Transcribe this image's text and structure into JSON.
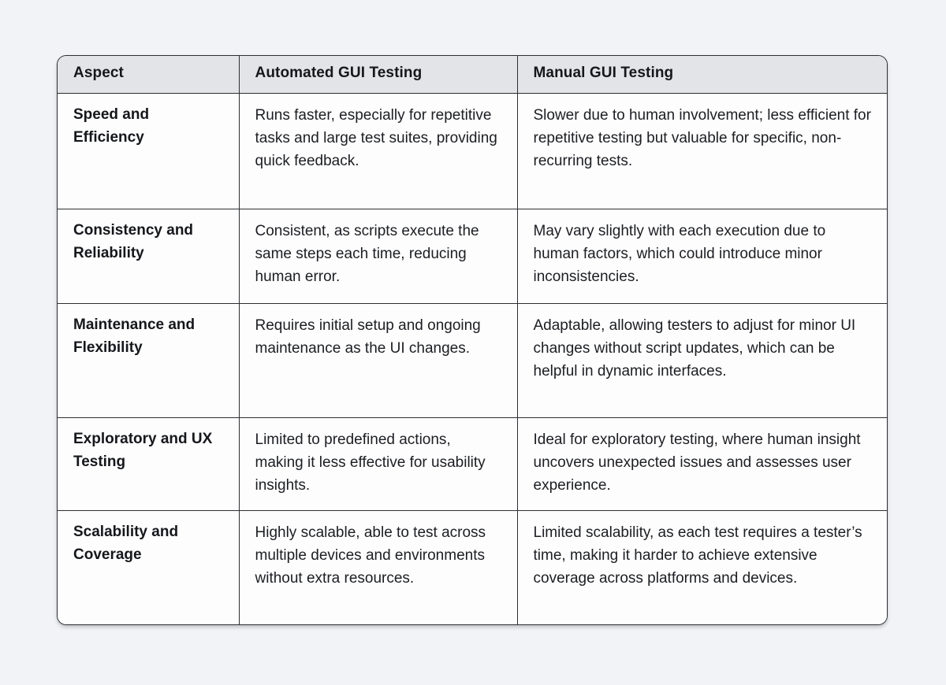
{
  "colors": {
    "page_background": "#f1f3f6",
    "header_background": "#e3e4e8",
    "cell_background": "#fdfdfd",
    "border": "#2c2e33",
    "text": "#1c1e22"
  },
  "table": {
    "columns": [
      "Aspect",
      "Automated GUI Testing",
      "Manual GUI Testing"
    ],
    "rows": [
      {
        "aspect": "Speed and Efficiency",
        "automated": "Runs faster, especially for repetitive tasks and large test suites, providing quick feedback.",
        "manual": "Slower due to human involvement; less efficient for repetitive testing but valuable for specific, non-recurring tests."
      },
      {
        "aspect": "Consistency and Reliability",
        "automated": "Consistent, as scripts execute the same steps each time, reducing human error.",
        "manual": "May vary slightly with each execution due to human factors, which could introduce minor inconsistencies."
      },
      {
        "aspect": "Maintenance and Flexibility",
        "automated": "Requires initial setup and ongoing maintenance as the UI changes.",
        "manual": "Adaptable, allowing testers to adjust for minor UI changes without script updates, which can be helpful in dynamic interfaces."
      },
      {
        "aspect": "Exploratory and UX Testing",
        "automated": "Limited to predefined actions, making it less effective for usability insights.",
        "manual": "Ideal for exploratory testing, where human insight uncovers unexpected issues and assesses user experience."
      },
      {
        "aspect": "Scalability and Coverage",
        "automated": "Highly scalable, able to test across multiple devices and environments without extra resources.",
        "manual": "Limited scalability, as each test requires a tester’s time, making it harder to achieve extensive coverage across platforms and devices."
      }
    ]
  }
}
